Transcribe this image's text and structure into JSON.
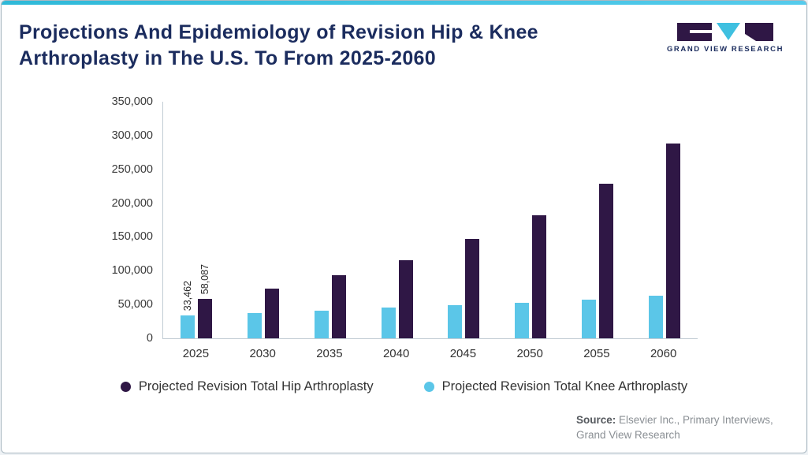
{
  "header": {
    "title": "Projections And Epidemiology of Revision Hip & Knee Arthroplasty in The U.S. To From 2025-2060",
    "logo_text": "GRAND VIEW RESEARCH"
  },
  "chart_data": {
    "type": "bar",
    "categories": [
      "2025",
      "2030",
      "2035",
      "2040",
      "2045",
      "2050",
      "2055",
      "2060"
    ],
    "series": [
      {
        "key": "hip",
        "name": "Projected Revision Total Hip Arthroplasty",
        "color": "#2f1745",
        "values": [
          58087,
          73500,
          93000,
          116000,
          147000,
          182000,
          229000,
          288000
        ],
        "data_labels": {
          "2025": "58,087"
        }
      },
      {
        "key": "knee",
        "name": "Projected Revision Total Knee Arthroplasty",
        "color": "#5bc6e8",
        "values": [
          33462,
          37500,
          41000,
          45500,
          49000,
          52500,
          57000,
          62500
        ],
        "data_labels": {
          "2025": "33,462"
        }
      }
    ],
    "title": "Projections And Epidemiology of Revision Hip & Knee Arthroplasty in The U.S. To From 2025-2060",
    "xlabel": "",
    "ylabel": "",
    "ylim": [
      0,
      350000
    ],
    "yticks": [
      "0",
      "50,000",
      "100,000",
      "150,000",
      "200,000",
      "250,000",
      "300,000",
      "350,000"
    ],
    "grid": false,
    "legend_position": "bottom",
    "bar_render_order": "knee left, hip right"
  },
  "footer": {
    "source_label": "Source:",
    "source_text": " Elsevier Inc., Primary Interviews, Grand View Research"
  }
}
